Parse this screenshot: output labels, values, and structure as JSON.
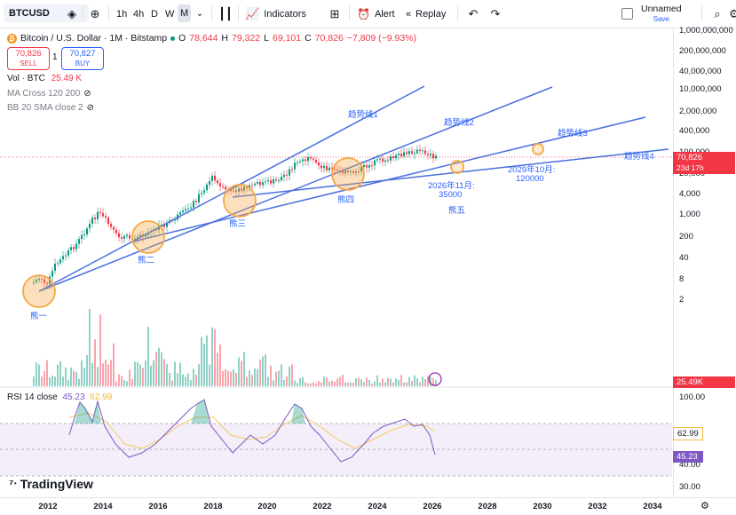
{
  "toolbar": {
    "symbol": "BTCUSD",
    "resolutions": [
      "1h",
      "4h",
      "D",
      "W",
      "M"
    ],
    "active_resolution": "M",
    "indicators_label": "Indicators",
    "alert_label": "Alert",
    "replay_label": "Replay",
    "layout_name": "Unnamed",
    "layout_status": "Save"
  },
  "legend": {
    "title": "Bitcoin / U.S. Dollar · 1M · Bitstamp",
    "o_label": "O",
    "o": "78,644",
    "h_label": "H",
    "h": "79,322",
    "l_label": "L",
    "l": "69,101",
    "c_label": "C",
    "c": "70,826",
    "change": "−7,809 (−9.93%)"
  },
  "trade": {
    "sell_price": "70,826",
    "sell_label": "SELL",
    "qty": "1",
    "buy_price": "70,827",
    "buy_label": "BUY"
  },
  "indicators": {
    "vol_label": "Vol · BTC",
    "vol_value": "25.49 K",
    "ma_label": "MA Cross 120 200",
    "bb_label": "BB 20 SMA close 2"
  },
  "rsi": {
    "label": "RSI 14 close",
    "value1": "45.23",
    "value2": "62.99",
    "ticks": [
      "100.00",
      "40.00",
      "30.00"
    ],
    "tag1": "62.99",
    "tag2": "45.23"
  },
  "price_axis": {
    "ticks": [
      "1,000,000,000",
      "200,000,000",
      "40,000,000",
      "10,000,000",
      "2,000,000",
      "400,000",
      "100,000",
      "20,000",
      "4,000",
      "1,000",
      "200",
      "40",
      "8",
      "2"
    ],
    "last_price": "70,826",
    "countdown": "23d 17h",
    "vol_tag": "25.49K"
  },
  "time_axis": [
    "2012",
    "2014",
    "2016",
    "2018",
    "2020",
    "2022",
    "2024",
    "2026",
    "2028",
    "2030",
    "2032",
    "2034"
  ],
  "annotations": {
    "bear1": "熊一",
    "bear2": "熊二",
    "bear3": "熊三",
    "bear4": "熊四",
    "bear5": "熊五",
    "trend1": "趋势线1",
    "trend2": "趋势线2",
    "trend3": "趋势线3",
    "trend4": "趋势线4",
    "target1_date": "2026年11月:",
    "target1_value": "35000",
    "target2_date": "2029年10月:",
    "target2_value": "120000"
  },
  "brand": "TradingView",
  "colors": {
    "up": "#089981",
    "down": "#f23645",
    "trendline": "#4a6fe0",
    "circle": "#f5a742",
    "rsi_line": "#7e57c2",
    "rsi_ma": "#f7c95c",
    "blue": "#2962ff"
  }
}
